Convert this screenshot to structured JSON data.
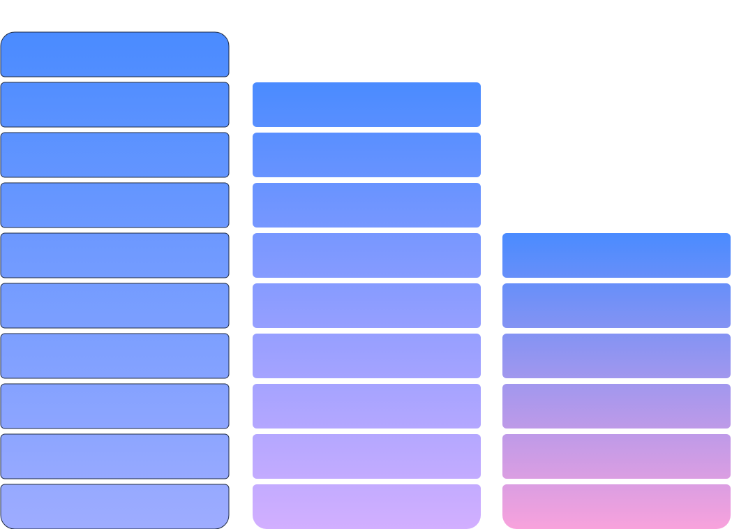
{
  "chart_data": {
    "type": "bar",
    "style": "stacked-segment columns",
    "title": "",
    "xlabel": "",
    "ylabel": "",
    "categories": [
      "",
      "",
      ""
    ],
    "values": [
      10,
      9,
      6
    ],
    "ylim": [
      0,
      10
    ],
    "grid": false,
    "legend": "none",
    "columns": [
      {
        "value": 10,
        "segments": 10,
        "top_color": "#4a8bff",
        "bottom_color": "#9eacff",
        "outline": "#1e2a40"
      },
      {
        "value": 9,
        "segments": 9,
        "top_color": "#4a8bff",
        "bottom_color": "#d2afff",
        "outline": ""
      },
      {
        "value": 6,
        "segments": 6,
        "top_color": "#4a8bff",
        "bottom_color": "#f8a2dc",
        "outline": ""
      }
    ]
  }
}
